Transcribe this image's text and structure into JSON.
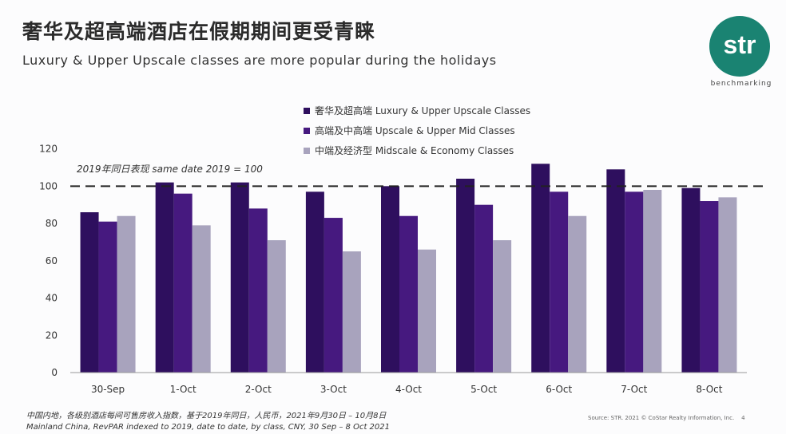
{
  "title": "奢华及超高端酒店在假期期间更受青睐",
  "subtitle": "Luxury & Upper Upscale classes are more popular during the holidays",
  "logo": {
    "text": "str",
    "sub": "benchmarking",
    "color": "#1a8372"
  },
  "footnote_cn": "中国内地，各级别酒店每间可售房收入指数，基于2019年同日，人民币，2021年9月30日 – 10月8日",
  "footnote_en": "Mainland China, RevPAR indexed to 2019, date to date, by class, CNY, 30 Sep – 8 Oct 2021",
  "source": "Source: STR. 2021 © CoStar Realty Information, Inc.",
  "page_number": "4",
  "chart_data": {
    "type": "bar",
    "categories": [
      "30-Sep",
      "1-Oct",
      "2-Oct",
      "3-Oct",
      "4-Oct",
      "5-Oct",
      "6-Oct",
      "7-Oct",
      "8-Oct"
    ],
    "series": [
      {
        "name": "奢华及超高端 Luxury & Upper Upscale Classes",
        "color": "#2e0f5e",
        "values": [
          86,
          102,
          102,
          97,
          100,
          104,
          112,
          109,
          99
        ]
      },
      {
        "name": "高端及中高端 Upscale & Upper Mid Classes",
        "color": "#46197f",
        "values": [
          81,
          96,
          88,
          83,
          84,
          90,
          97,
          97,
          92
        ]
      },
      {
        "name": "中端及经济型 Midscale & Economy Classes",
        "color": "#a8a3bd",
        "values": [
          84,
          79,
          71,
          65,
          66,
          71,
          84,
          98,
          94
        ]
      }
    ],
    "ylim": [
      0,
      120
    ],
    "yticks": [
      0,
      20,
      40,
      60,
      80,
      100,
      120
    ],
    "reference_line": {
      "value": 100,
      "label": "2019年同日表现 same date 2019 = 100",
      "style": "dashed"
    },
    "grid": false,
    "legend_position": "top"
  }
}
